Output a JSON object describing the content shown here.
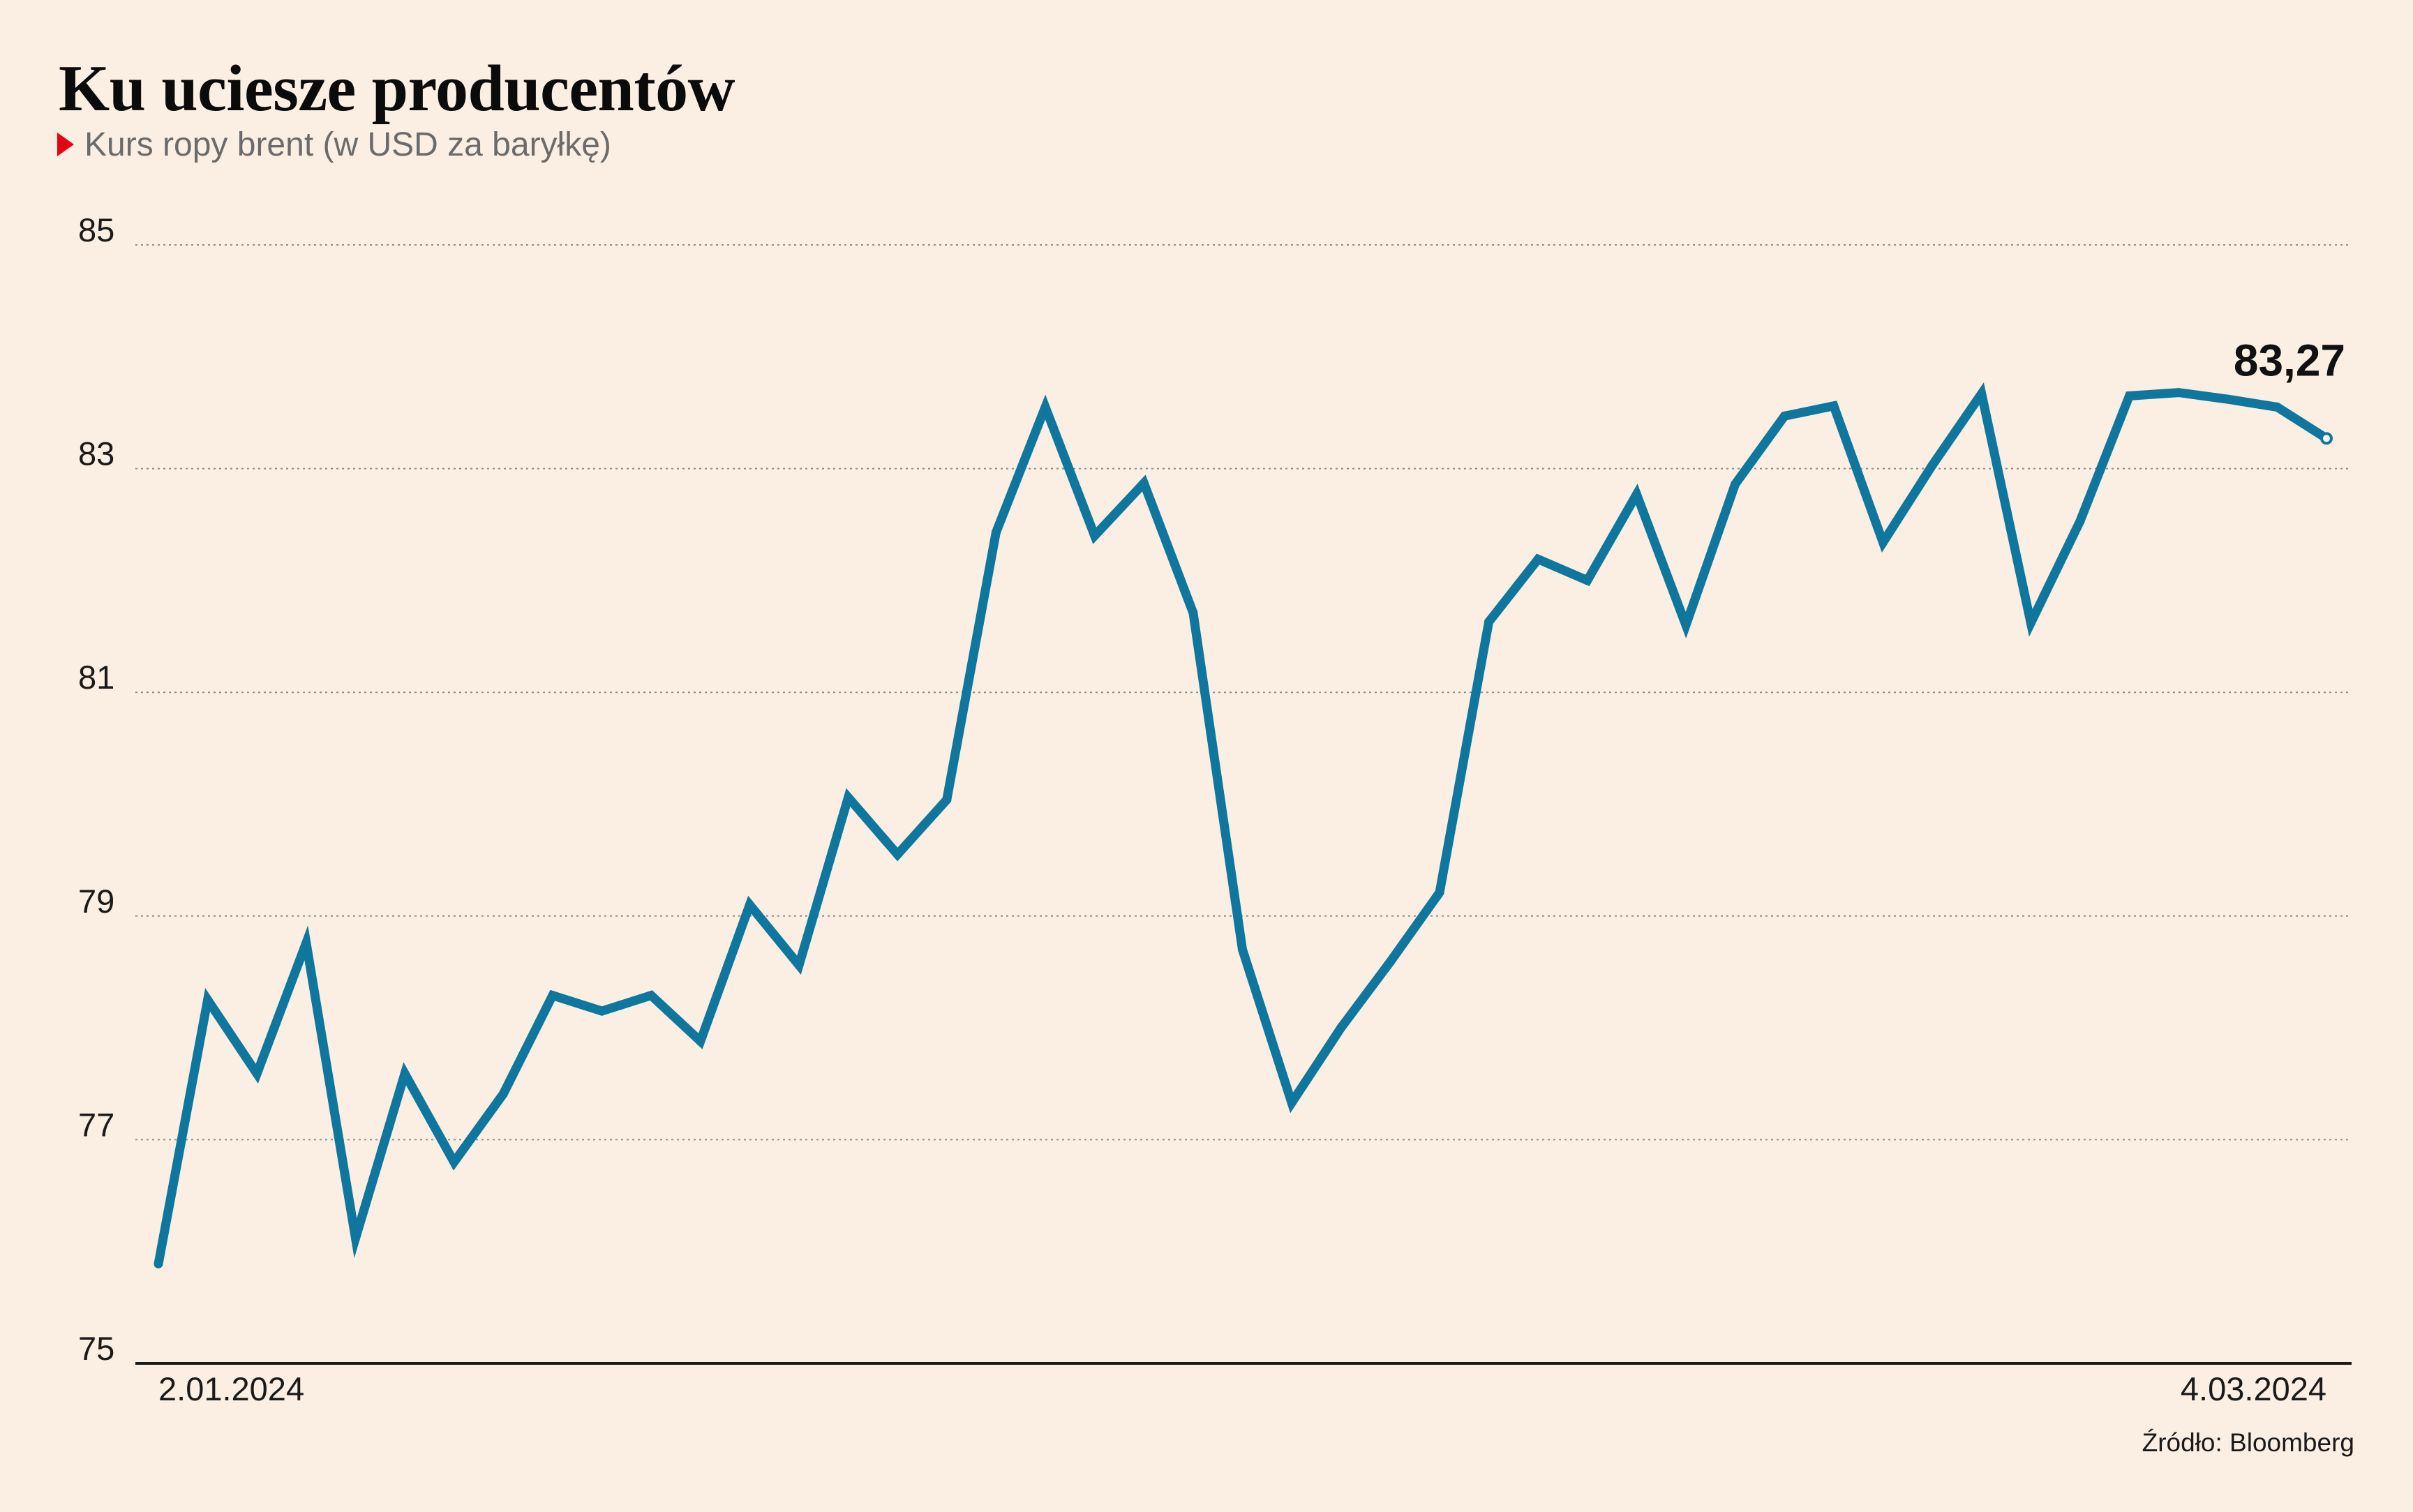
{
  "chart_data": {
    "type": "line",
    "title": "Ku uciesze producentów",
    "subtitle": "Kurs ropy brent (w USD za baryłkę)",
    "x": [
      "2.01.2024",
      "3.01.2024",
      "4.01.2024",
      "5.01.2024",
      "8.01.2024",
      "9.01.2024",
      "10.01.2024",
      "11.01.2024",
      "12.01.2024",
      "15.01.2024",
      "16.01.2024",
      "17.01.2024",
      "18.01.2024",
      "19.01.2024",
      "22.01.2024",
      "23.01.2024",
      "24.01.2024",
      "25.01.2024",
      "26.01.2024",
      "29.01.2024",
      "30.01.2024",
      "31.01.2024",
      "1.02.2024",
      "2.02.2024",
      "5.02.2024",
      "6.02.2024",
      "7.02.2024",
      "8.02.2024",
      "9.02.2024",
      "12.02.2024",
      "13.02.2024",
      "14.02.2024",
      "15.02.2024",
      "16.02.2024",
      "19.02.2024",
      "20.02.2024",
      "21.02.2024",
      "22.02.2024",
      "23.02.2024",
      "26.02.2024",
      "27.02.2024",
      "28.02.2024",
      "29.02.2024",
      "1.03.2024",
      "4.03.2024"
    ],
    "x_tick_labels": [
      "2.01.2024",
      "4.03.2024"
    ],
    "ylim": [
      75,
      85
    ],
    "y_ticks": [
      85,
      83,
      81,
      79,
      77,
      75
    ],
    "grid": true,
    "series": [
      {
        "values": [
          75.89,
          78.25,
          77.59,
          78.76,
          76.12,
          77.59,
          76.8,
          77.41,
          78.29,
          78.15,
          78.29,
          77.88,
          79.1,
          78.56,
          80.06,
          79.55,
          80.04,
          82.43,
          83.55,
          82.4,
          82.87,
          81.71,
          78.7,
          77.33,
          78.0,
          78.59,
          79.21,
          81.63,
          82.19,
          82.0,
          82.77,
          81.6,
          82.86,
          83.47,
          83.56,
          82.34,
          83.03,
          83.67,
          81.62,
          82.53,
          83.65,
          83.68,
          83.62,
          83.55,
          83.27
        ],
        "color": "#0f769d"
      }
    ],
    "annotations": [
      {
        "x": "4.03.2024",
        "y": 83.27,
        "text": "83,27"
      }
    ]
  },
  "source": "Źródło: Bloomberg",
  "colors": {
    "background": "#fbeee2",
    "accent": "#e30613",
    "grid": "#8f8f8f"
  }
}
